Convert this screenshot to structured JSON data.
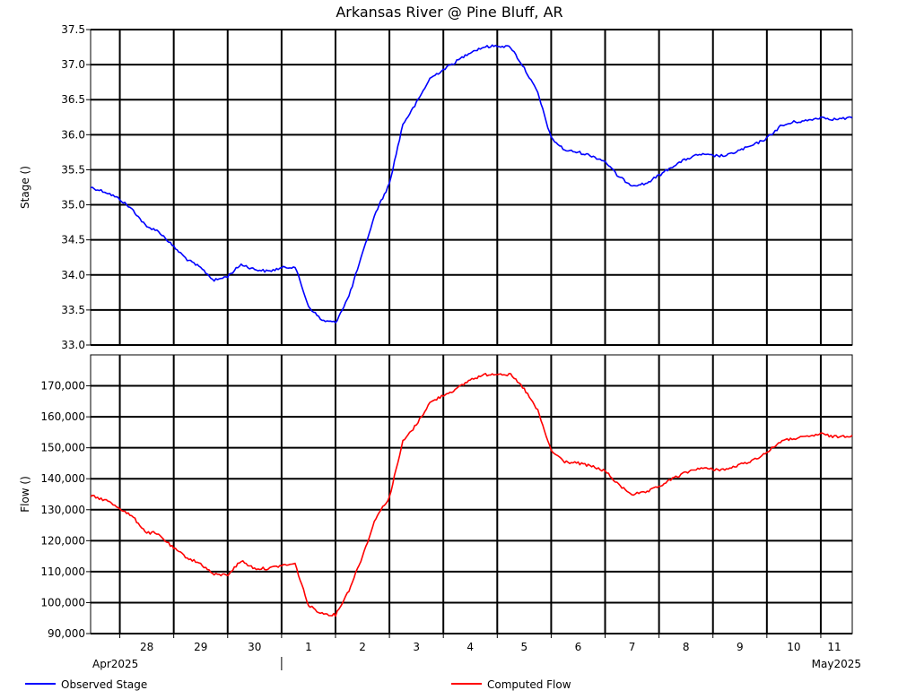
{
  "chart_data": {
    "type": "line",
    "title": "Arkansas River @ Pine Bluff, AR",
    "x_range": [
      "2025-04-27 11:00",
      "2025-05-11 14:00"
    ],
    "x_tick_lines": [
      "2025-04-28",
      "2025-04-29",
      "2025-04-30",
      "2025-05-01",
      "2025-05-02",
      "2025-05-03",
      "2025-05-04",
      "2025-05-05",
      "2025-05-06",
      "2025-05-07",
      "2025-05-08",
      "2025-05-09",
      "2025-05-10",
      "2025-05-11"
    ],
    "day_labels": [
      {
        "date": "2025-04-28 12:00",
        "label": "28"
      },
      {
        "date": "2025-04-29 12:00",
        "label": "29"
      },
      {
        "date": "2025-04-30 12:00",
        "label": "30"
      },
      {
        "date": "2025-05-01 12:00",
        "label": "1"
      },
      {
        "date": "2025-05-02 12:00",
        "label": "2"
      },
      {
        "date": "2025-05-03 12:00",
        "label": "3"
      },
      {
        "date": "2025-05-04 12:00",
        "label": "4"
      },
      {
        "date": "2025-05-05 12:00",
        "label": "5"
      },
      {
        "date": "2025-05-06 12:00",
        "label": "6"
      },
      {
        "date": "2025-05-07 12:00",
        "label": "7"
      },
      {
        "date": "2025-05-08 12:00",
        "label": "8"
      },
      {
        "date": "2025-05-09 12:00",
        "label": "9"
      },
      {
        "date": "2025-05-10 12:00",
        "label": "10"
      },
      {
        "date": "2025-05-11 06:00",
        "label": "11"
      }
    ],
    "month_labels": [
      {
        "label": "Apr2025",
        "align": "left"
      },
      {
        "label": "May2025",
        "align": "right"
      }
    ],
    "month_marker_date": "2025-05-01",
    "panels": [
      {
        "ylabel": "Stage ()",
        "ylim": [
          33.0,
          37.5
        ],
        "yticks": [
          33.0,
          33.5,
          34.0,
          34.5,
          35.0,
          35.5,
          36.0,
          36.5,
          37.0,
          37.5
        ],
        "tick_labels": [
          "33.0",
          "33.5",
          "34.0",
          "34.5",
          "35.0",
          "35.5",
          "36.0",
          "36.5",
          "37.0",
          "37.5"
        ],
        "series": {
          "name": "Observed Stage",
          "color": "#0000ff",
          "x": [
            "2025-04-27 11:00",
            "2025-04-27 18:00",
            "2025-04-28 00:00",
            "2025-04-28 06:00",
            "2025-04-28 12:00",
            "2025-04-28 15:00",
            "2025-04-28 18:00",
            "2025-04-29 00:00",
            "2025-04-29 06:00",
            "2025-04-29 12:00",
            "2025-04-29 18:00",
            "2025-04-30 00:00",
            "2025-04-30 06:00",
            "2025-04-30 12:00",
            "2025-04-30 18:00",
            "2025-05-01 00:00",
            "2025-05-01 06:00",
            "2025-05-01 12:00",
            "2025-05-01 18:00",
            "2025-05-02 00:00",
            "2025-05-02 06:00",
            "2025-05-02 12:00",
            "2025-05-02 18:00",
            "2025-05-03 00:00",
            "2025-05-03 06:00",
            "2025-05-03 12:00",
            "2025-05-03 18:00",
            "2025-05-04 00:00",
            "2025-05-04 06:00",
            "2025-05-04 12:00",
            "2025-05-04 18:00",
            "2025-05-05 00:00",
            "2025-05-05 06:00",
            "2025-05-05 12:00",
            "2025-05-05 18:00",
            "2025-05-06 00:00",
            "2025-05-06 06:00",
            "2025-05-06 12:00",
            "2025-05-06 18:00",
            "2025-05-07 00:00",
            "2025-05-07 06:00",
            "2025-05-07 12:00",
            "2025-05-07 18:00",
            "2025-05-08 00:00",
            "2025-05-08 06:00",
            "2025-05-08 12:00",
            "2025-05-08 18:00",
            "2025-05-09 00:00",
            "2025-05-09 06:00",
            "2025-05-09 12:00",
            "2025-05-09 18:00",
            "2025-05-10 00:00",
            "2025-05-10 06:00",
            "2025-05-10 12:00",
            "2025-05-10 18:00",
            "2025-05-11 00:00",
            "2025-05-11 06:00",
            "2025-05-11 14:00"
          ],
          "y": [
            35.25,
            35.18,
            35.08,
            34.92,
            34.68,
            34.66,
            34.6,
            34.4,
            34.22,
            34.1,
            33.92,
            33.98,
            34.15,
            34.08,
            34.05,
            34.1,
            34.12,
            33.55,
            33.35,
            33.32,
            33.7,
            34.3,
            34.9,
            35.3,
            36.15,
            36.45,
            36.8,
            36.93,
            37.05,
            37.18,
            37.25,
            37.27,
            37.25,
            36.95,
            36.6,
            35.95,
            35.78,
            35.75,
            35.7,
            35.62,
            35.4,
            35.28,
            35.3,
            35.42,
            35.55,
            35.65,
            35.72,
            35.7,
            35.7,
            35.78,
            35.85,
            35.95,
            36.12,
            36.18,
            36.2,
            36.25,
            36.22,
            36.24
          ]
        }
      },
      {
        "ylabel": "Flow ()",
        "ylim": [
          90000,
          180000
        ],
        "yticks": [
          90000,
          100000,
          110000,
          120000,
          130000,
          140000,
          150000,
          160000,
          170000
        ],
        "tick_labels": [
          "90,000",
          "100,000",
          "110,000",
          "120,000",
          "130,000",
          "140,000",
          "150,000",
          "160,000",
          "170,000"
        ],
        "series": {
          "name": "Computed Flow",
          "color": "#ff0000",
          "x": [
            "2025-04-27 11:00",
            "2025-04-27 18:00",
            "2025-04-28 00:00",
            "2025-04-28 06:00",
            "2025-04-28 12:00",
            "2025-04-28 15:00",
            "2025-04-28 18:00",
            "2025-04-29 00:00",
            "2025-04-29 06:00",
            "2025-04-29 12:00",
            "2025-04-29 18:00",
            "2025-04-30 00:00",
            "2025-04-30 06:00",
            "2025-04-30 12:00",
            "2025-04-30 18:00",
            "2025-05-01 00:00",
            "2025-05-01 06:00",
            "2025-05-01 12:00",
            "2025-05-01 18:00",
            "2025-05-02 00:00",
            "2025-05-02 06:00",
            "2025-05-02 12:00",
            "2025-05-02 18:00",
            "2025-05-03 00:00",
            "2025-05-03 06:00",
            "2025-05-03 12:00",
            "2025-05-03 18:00",
            "2025-05-04 00:00",
            "2025-05-04 06:00",
            "2025-05-04 12:00",
            "2025-05-04 18:00",
            "2025-05-05 00:00",
            "2025-05-05 06:00",
            "2025-05-05 12:00",
            "2025-05-05 18:00",
            "2025-05-06 00:00",
            "2025-05-06 06:00",
            "2025-05-06 12:00",
            "2025-05-06 18:00",
            "2025-05-07 00:00",
            "2025-05-07 06:00",
            "2025-05-07 12:00",
            "2025-05-07 18:00",
            "2025-05-08 00:00",
            "2025-05-08 06:00",
            "2025-05-08 12:00",
            "2025-05-08 18:00",
            "2025-05-09 00:00",
            "2025-05-09 06:00",
            "2025-05-09 12:00",
            "2025-05-09 18:00",
            "2025-05-10 00:00",
            "2025-05-10 06:00",
            "2025-05-10 12:00",
            "2025-05-10 18:00",
            "2025-05-11 00:00",
            "2025-05-11 06:00",
            "2025-05-11 14:00"
          ],
          "y": [
            134500,
            133000,
            130500,
            127500,
            122500,
            122500,
            121500,
            117500,
            114500,
            112500,
            109000,
            109000,
            113500,
            111000,
            111000,
            112000,
            112500,
            99000,
            96500,
            96000,
            104000,
            115000,
            127500,
            134000,
            152000,
            157500,
            164500,
            167000,
            169000,
            172000,
            173500,
            174000,
            173500,
            169000,
            162000,
            149000,
            145500,
            145000,
            144000,
            142500,
            138000,
            135000,
            135500,
            137500,
            140000,
            142000,
            143500,
            143000,
            143000,
            144500,
            146000,
            148500,
            152000,
            153000,
            153500,
            154500,
            153500,
            154000
          ]
        }
      }
    ],
    "legend_placement": "bottom"
  }
}
